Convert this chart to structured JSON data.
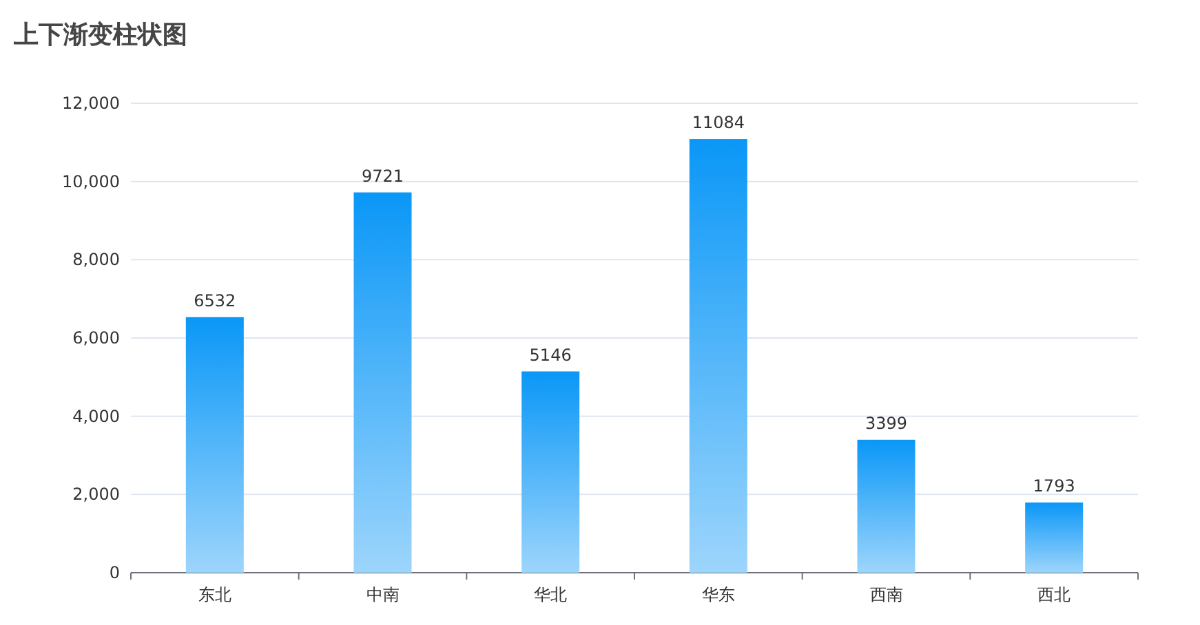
{
  "chart_data": {
    "type": "bar",
    "title": "上下渐变柱状图",
    "categories": [
      "东北",
      "中南",
      "华北",
      "华东",
      "西南",
      "西北"
    ],
    "values": [
      6532,
      9721,
      5146,
      11084,
      3399,
      1793
    ],
    "color": "#0a97f7",
    "ylim": [
      0,
      12000
    ],
    "yticks": [
      0,
      {
        "value": 2000,
        "label": "2,000"
      },
      {
        "value": 4000,
        "label": "4,000"
      },
      {
        "value": 6000,
        "label": "6,000"
      },
      {
        "value": 8000,
        "label": "8,000"
      },
      {
        "value": 10000,
        "label": "10,000"
      },
      {
        "value": 12000,
        "label": "12,000"
      }
    ],
    "grid": "y",
    "data_labels": true
  }
}
